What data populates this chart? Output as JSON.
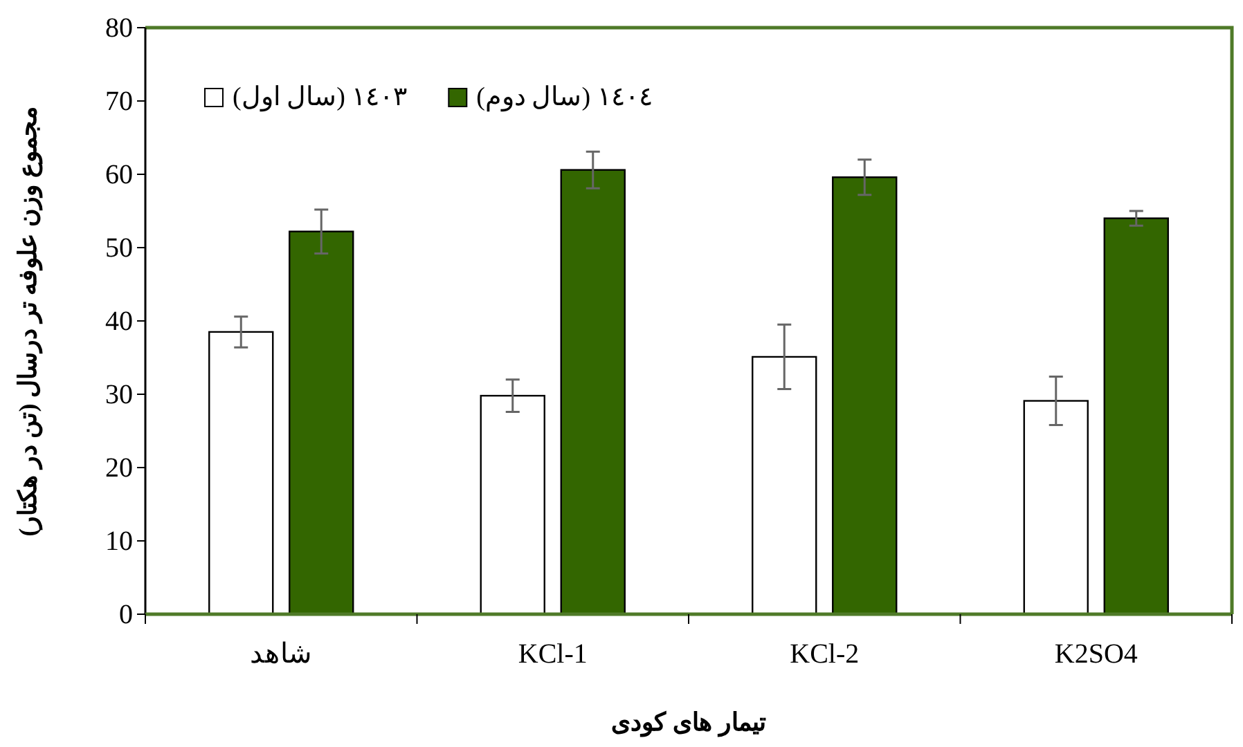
{
  "chart_data": {
    "type": "bar",
    "xlabel": "تیمار های کودی",
    "ylabel": "مجموع وزن علوفه تر درسال (تن در هکتار)",
    "categories": [
      "شاهد",
      "KCl-1",
      "KCl-2",
      "K2SO4"
    ],
    "series": [
      {
        "name": "١٤٠٣ (سال اول)",
        "color": "#ffffff",
        "values": [
          38.5,
          29.8,
          35.1,
          29.1
        ],
        "errors": [
          2.1,
          2.2,
          4.4,
          3.3
        ]
      },
      {
        "name": "١٤٠٤ (سال دوم)",
        "color": "#336600",
        "values": [
          52.2,
          60.6,
          59.6,
          54.0
        ],
        "errors": [
          3.0,
          2.5,
          2.4,
          1.0
        ]
      }
    ],
    "ylim": [
      0,
      80
    ],
    "yticks": [
      0,
      10,
      20,
      30,
      40,
      50,
      60,
      70,
      80
    ],
    "grid": false,
    "legend": "top left"
  }
}
